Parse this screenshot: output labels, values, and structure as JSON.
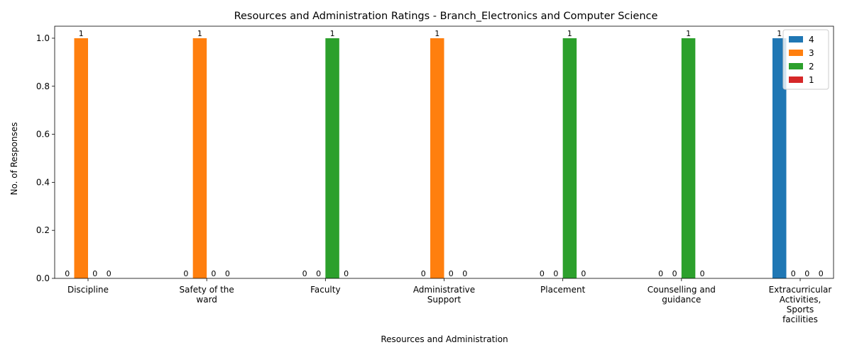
{
  "chart_data": {
    "type": "bar",
    "title": "Resources and Administration Ratings - Branch_Electronics and Computer Science",
    "xlabel": "Resources and Administration",
    "ylabel": "No. of Responses",
    "ylim": [
      0,
      1.05
    ],
    "yticks": [
      "0.0",
      "0.2",
      "0.4",
      "0.6",
      "0.8",
      "1.0"
    ],
    "ytick_values": [
      0,
      0.2,
      0.4,
      0.6,
      0.8,
      1.0
    ],
    "categories": [
      [
        "Discipline"
      ],
      [
        "Safety of the",
        "ward"
      ],
      [
        "Faculty"
      ],
      [
        "Administrative",
        "Support"
      ],
      [
        "Placement"
      ],
      [
        "Counselling and",
        "guidance"
      ],
      [
        "Extracurricular",
        "Activities,",
        "Sports",
        "facilities"
      ]
    ],
    "series": [
      {
        "name": "4",
        "color": "#1f77b4",
        "values": [
          0,
          0,
          0,
          0,
          0,
          0,
          1
        ]
      },
      {
        "name": "3",
        "color": "#ff7f0e",
        "values": [
          1,
          1,
          0,
          1,
          0,
          0,
          0
        ]
      },
      {
        "name": "2",
        "color": "#2ca02c",
        "values": [
          0,
          0,
          1,
          0,
          1,
          1,
          0
        ]
      },
      {
        "name": "1",
        "color": "#d62728",
        "values": [
          0,
          0,
          0,
          0,
          0,
          0,
          0
        ]
      }
    ],
    "legend_position": "top-right",
    "grid": false
  }
}
